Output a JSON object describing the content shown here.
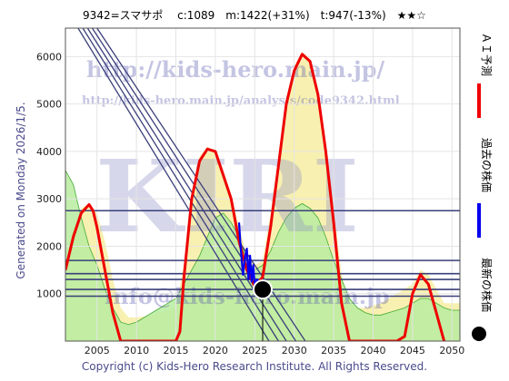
{
  "header": {
    "title": "9342=スマサポ　 c:1089　m:1422(+31%)　t:947(-13%)　★★☆"
  },
  "side_label": "Generated on Monday 2026/1/5.",
  "footer": "Copyright (c) Kids-Hero Research Institute. All Rights Reserved.",
  "watermark": {
    "url_main": "http://kids-hero.main.jp/",
    "url_sub": "http://kids-hero.main.jp/analysis/code9342.html",
    "logo": "KIRI",
    "email": "info@kids-hero.main.jp"
  },
  "legend": [
    {
      "label": "ＡＩ予測",
      "color": "#ee0000",
      "marker": "line"
    },
    {
      "label": "過去の株価",
      "color": "#0000ee",
      "marker": "line"
    },
    {
      "label": "最新の株価",
      "color": "#000000",
      "marker": "dot"
    }
  ],
  "colors": {
    "prediction": "#ee0000",
    "past": "#0000ee",
    "band_yellow": "#f8f0b0",
    "band_green": "#b8eca0",
    "trend_lines": "#3a3f7a",
    "thin_green": "#44aa33"
  },
  "chart_data": {
    "type": "line",
    "xlim": [
      2001,
      2051
    ],
    "ylim": [
      0,
      6600
    ],
    "x_ticks": [
      2005,
      2010,
      2015,
      2020,
      2025,
      2030,
      2035,
      2040,
      2045,
      2050
    ],
    "y_ticks": [
      1000,
      2000,
      3000,
      4000,
      5000,
      6000
    ],
    "latest": {
      "x": 2026.0,
      "y": 1089
    },
    "horizontal_levels": [
      947,
      1089,
      1300,
      1422,
      1700,
      2750
    ],
    "prediction": {
      "x": [
        2001,
        2002,
        2003,
        2004,
        2004.5,
        2005,
        2006,
        2007,
        2008,
        2009,
        2010,
        2011,
        2012,
        2013,
        2014,
        2015,
        2015.5,
        2016,
        2017,
        2018,
        2019,
        2020,
        2021,
        2022,
        2023,
        2024,
        2025,
        2026,
        2027,
        2028,
        2029,
        2030,
        2031,
        2032,
        2033,
        2034,
        2035,
        2036,
        2037,
        2038,
        2039,
        2040,
        2041,
        2042,
        2043,
        2044,
        2045,
        2046,
        2047,
        2048,
        2049
      ],
      "y": [
        1500,
        2200,
        2700,
        2880,
        2750,
        2400,
        1500,
        600,
        0,
        0,
        0,
        0,
        0,
        0,
        0,
        0,
        200,
        1300,
        3000,
        3800,
        4050,
        4000,
        3500,
        3000,
        2100,
        1500,
        1150,
        1350,
        2400,
        3700,
        5000,
        5700,
        6050,
        5900,
        5200,
        4000,
        2500,
        800,
        0,
        0,
        0,
        0,
        0,
        0,
        0,
        100,
        1000,
        1400,
        1200,
        600,
        0
      ]
    },
    "past": {
      "x": [
        2023.0,
        2023.2,
        2023.5,
        2023.8,
        2024.0,
        2024.2,
        2024.4,
        2024.6,
        2024.8,
        2025.0,
        2025.3,
        2025.6,
        2026.0
      ],
      "y": [
        2500,
        2000,
        1400,
        1800,
        1950,
        1300,
        1800,
        1250,
        1600,
        1150,
        1300,
        1150,
        1089
      ]
    },
    "band_upper": {
      "x": [
        2001,
        2002,
        2003,
        2004,
        2005,
        2006,
        2007,
        2008,
        2009,
        2010,
        2011,
        2012,
        2013,
        2014,
        2015,
        2016,
        2017,
        2018,
        2019,
        2020,
        2021,
        2022,
        2023,
        2024,
        2025,
        2026,
        2027,
        2028,
        2029,
        2030,
        2031,
        2032,
        2033,
        2034,
        2035,
        2036,
        2037,
        2038,
        2039,
        2040,
        2041,
        2042,
        2043,
        2044,
        2045,
        2046,
        2047,
        2048,
        2049,
        2050,
        2051
      ],
      "y": [
        1800,
        2400,
        2800,
        2900,
        2700,
        2100,
        1300,
        700,
        500,
        500,
        520,
        550,
        600,
        650,
        700,
        1600,
        3100,
        3900,
        4100,
        4000,
        3600,
        3100,
        2400,
        1800,
        1600,
        1700,
        2700,
        3900,
        5100,
        5800,
        6100,
        5950,
        5300,
        4200,
        2800,
        1400,
        800,
        700,
        700,
        750,
        800,
        900,
        1000,
        1100,
        1200,
        1500,
        1400,
        1100,
        800,
        800,
        800
      ]
    },
    "band_lower": {
      "x": [
        2001,
        2002,
        2003,
        2004,
        2005,
        2006,
        2007,
        2008,
        2009,
        2010,
        2011,
        2012,
        2013,
        2014,
        2015,
        2016,
        2017,
        2018,
        2019,
        2020,
        2021,
        2022,
        2023,
        2024,
        2025,
        2026,
        2027,
        2028,
        2029,
        2030,
        2031,
        2032,
        2033,
        2034,
        2035,
        2036,
        2037,
        2038,
        2039,
        2040,
        2041,
        2042,
        2043,
        2044,
        2045,
        2046,
        2047,
        2048,
        2049,
        2050,
        2051
      ],
      "y": [
        3600,
        3300,
        2600,
        2000,
        1600,
        1100,
        700,
        400,
        350,
        400,
        500,
        600,
        700,
        800,
        900,
        1200,
        1500,
        1800,
        2200,
        2600,
        2700,
        2500,
        2200,
        1700,
        1500,
        1600,
        1900,
        2300,
        2600,
        2800,
        2900,
        2800,
        2600,
        2200,
        1700,
        1300,
        900,
        700,
        600,
        550,
        550,
        600,
        650,
        700,
        800,
        900,
        900,
        800,
        700,
        650,
        650
      ]
    },
    "trend_lines": [
      {
        "x": [
          2003.2,
          2028.0
        ],
        "y": [
          6600,
          0
        ]
      },
      {
        "x": [
          2003.8,
          2029.0
        ],
        "y": [
          6600,
          0
        ]
      },
      {
        "x": [
          2002.6,
          2026.8
        ],
        "y": [
          6600,
          0
        ]
      },
      {
        "x": [
          2004.4,
          2030.2
        ],
        "y": [
          6600,
          0
        ]
      },
      {
        "x": [
          2005.0,
          2031.4
        ],
        "y": [
          6600,
          0
        ]
      }
    ]
  }
}
